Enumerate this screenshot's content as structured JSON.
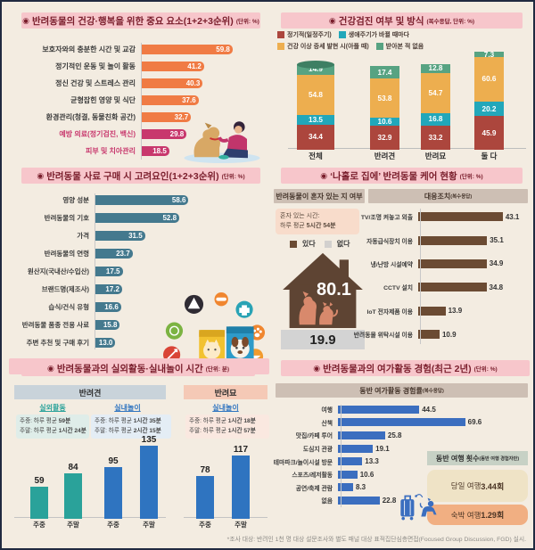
{
  "ui": {
    "bullet": "◉",
    "footnote": "*조사 대상: 반려인 1천 명 대상 설문조사와 별도 패널 대상 표적집단심층면접(Focused Group Discussion, FGD) 실시."
  },
  "colors": {
    "background": "#F3ECE1",
    "title_band": "#F7C6CB",
    "title_text": "#7A1E2C",
    "orange_bar": "#F07B44",
    "pink_bar": "#C8386D",
    "feed_bar": "#44798E",
    "stack_regular": "#AC463D",
    "stack_lifecycle": "#22A7BA",
    "stack_symptom": "#EDAE4F",
    "stack_never": "#57A382",
    "brown_bar": "#6B4B33",
    "house_brown": "#5E4433",
    "pet_silhouette": "#D8896C",
    "gray_box": "#D3D3D3",
    "activity_teal": "#2AA29A",
    "activity_blue": "#2F74C0",
    "leisure_blue": "#3B6EBF",
    "day_box": "#EFE3C6",
    "stay_box": "#F1AF82"
  },
  "chart_data": [
    {
      "id": "importance",
      "type": "bar",
      "orientation": "horizontal",
      "title": "반려동물의 건강·행복을 위한 중요 요소(1+2+3순위)",
      "unit": "(단위: %)",
      "categories": [
        "보호자와의 충분한 시간 및 교감",
        "정기적인 운동 및 놀이 활동",
        "정신 건강 및 스트레스 관리",
        "균형잡힌 영양 및 식단",
        "환경관리(청결, 동물친화 공간)",
        "예방 의료(정기검진, 백신)",
        "피부 및 치아관리"
      ],
      "values": [
        "59.8",
        "41.2",
        "40.3",
        "37.6",
        "32.7",
        "29.8",
        "18.5"
      ],
      "highlight_indices": [
        5,
        6
      ]
    },
    {
      "id": "checkup",
      "type": "stacked-bar",
      "title": "건강검진 여부 및 방식",
      "unit": "(복수응답, 단위: %)",
      "categories": [
        "전체",
        "반려견",
        "반려묘",
        "둘 다"
      ],
      "series": [
        {
          "name": "정기적(일정주기)",
          "color": "#AC463D",
          "values": [
            "34.4",
            "32.9",
            "33.2",
            "45.9"
          ]
        },
        {
          "name": "생애주기가 바뀔 때마다",
          "color": "#22A7BA",
          "values": [
            "13.5",
            "10.6",
            "16.8",
            "20.2"
          ]
        },
        {
          "name": "건강 이상 증세 발현 시(아플 때)",
          "color": "#EDAE4F",
          "values": [
            "54.8",
            "53.8",
            "54.7",
            "60.6"
          ]
        },
        {
          "name": "받아본 적 없음",
          "color": "#57A382",
          "values": [
            "14.9",
            "17.4",
            "12.8",
            "7.3"
          ]
        }
      ]
    },
    {
      "id": "feed",
      "type": "bar",
      "orientation": "horizontal",
      "title": "반려동물 사료 구매 시 고려요인(1+2+3순위)",
      "unit": "(단위: %)",
      "categories": [
        "영양 성분",
        "반려동물의 기호",
        "가격",
        "반려동물의 연령",
        "원산지(국내산/수입산)",
        "브랜드명(제조사)",
        "습식/건식 유형",
        "반려동물 품종 전용 사료",
        "주변 추천 및 구매 후기"
      ],
      "values": [
        "58.6",
        "52.8",
        "31.5",
        "23.7",
        "17.5",
        "17.2",
        "16.6",
        "15.8",
        "13.0"
      ]
    },
    {
      "id": "home_alone",
      "type": "mixed",
      "title": "‘나홀로 집에’ 반려동물 케어 현황",
      "unit": "(단위: %)",
      "alone": {
        "header": "반려동물이 혼자 있는 지 여부",
        "note_line1": "혼자 있는 시간:",
        "note_line2_pre": "하루 평균 ",
        "note_line2_bold": "5시간 54분",
        "legend_yes": "있다",
        "legend_no": "없다",
        "yes_value": "80.1",
        "no_value": "19.9"
      },
      "measures": {
        "header": "대응조치",
        "sup": "(복수응답)",
        "categories": [
          "TV/조명 켜놓고 외출",
          "자동급식장치 이용",
          "냉/난방 시설예약",
          "CCTV 설치",
          "IoT 전자제품 이용",
          "반려동물 위탁시설 이용"
        ],
        "values": [
          "43.1",
          "35.1",
          "34.9",
          "34.8",
          "13.9",
          "10.9"
        ]
      }
    },
    {
      "id": "activity",
      "type": "grouped-bar",
      "title": "반려동물과의 실외활동·실내놀이 시간",
      "unit": "(단위: 분)",
      "groups": [
        {
          "header": "반려견",
          "sections": [
            {
              "label": "실외활동",
              "palette": "teal",
              "notes": [
                {
                  "pre": "주중: 하루 평균 ",
                  "bold": "59분"
                },
                {
                  "pre": "주말: 하루 평균 ",
                  "bold": "1시간 24분"
                }
              ],
              "bars": [
                {
                  "category": "주중",
                  "value": "59"
                },
                {
                  "category": "주말",
                  "value": "84"
                }
              ]
            },
            {
              "label": "실내놀이",
              "palette": "blue",
              "notes": [
                {
                  "pre": "주중: 하루 평균 ",
                  "bold": "1시간 35분"
                },
                {
                  "pre": "주말: 하루 평균 ",
                  "bold": "2시간 15분"
                }
              ],
              "bars": [
                {
                  "category": "주중",
                  "value": "95"
                },
                {
                  "category": "주말",
                  "value": "135"
                }
              ]
            }
          ]
        },
        {
          "header": "반려묘",
          "sections": [
            {
              "label": "실내놀이",
              "palette": "blue",
              "notes": [
                {
                  "pre": "주중: 하루 평균 ",
                  "bold": "1시간 18분"
                },
                {
                  "pre": "주말: 하루 평균 ",
                  "bold": "1시간 57분"
                }
              ],
              "bars": [
                {
                  "category": "주중",
                  "value": "78"
                },
                {
                  "category": "주말",
                  "value": "117"
                }
              ]
            }
          ]
        }
      ]
    },
    {
      "id": "leisure",
      "type": "bar",
      "orientation": "horizontal",
      "title": "반려동물과의 여가활동 경험(최근 2년)",
      "unit": "(단위: %)",
      "subtitle": "동반 여가활동 경험률",
      "sup": "(복수응답)",
      "categories": [
        "여행",
        "산책",
        "맛집/카페 투어",
        "도심지 관광",
        "테마파크/놀이시설 방문",
        "스포츠/레저활동",
        "공연/축제 관람",
        "없음"
      ],
      "values": [
        "44.5",
        "69.6",
        "25.8",
        "19.1",
        "13.3",
        "10.6",
        "8.3",
        "22.8"
      ],
      "trips": {
        "header": "동반 여행 횟수",
        "sup": "(동반 여행 경험자만)",
        "day_label": "당일 여행 ",
        "day_value": "3.44회",
        "stay_label": "숙박 여행 ",
        "stay_value": "1.29회"
      }
    }
  ]
}
